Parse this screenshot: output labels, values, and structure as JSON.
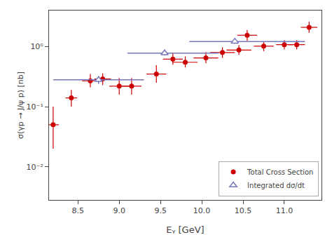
{
  "chart_data": {
    "type": "scatter",
    "title": "",
    "xlabel": "Eᵧ [GeV]",
    "ylabel": "σ(γp → J/ψ p) [nb]",
    "log": "y",
    "grid": false,
    "legend": "lower right",
    "xlim": [
      8.15,
      11.45
    ],
    "xticks": [
      8.5,
      {
        "value": 9,
        "label": "9.0"
      },
      9.5,
      {
        "value": 10,
        "label": "10.0"
      },
      10.5,
      {
        "value": 11,
        "label": "11.0"
      }
    ],
    "ylim": [
      0.0028,
      4.0
    ],
    "yticks": [
      {
        "value": 0.01,
        "label": "10⁻²"
      },
      {
        "value": 0.1,
        "label": "10⁻¹"
      },
      {
        "value": 1,
        "label": "10⁰"
      }
    ],
    "series": [
      {
        "name": "Total Cross Section",
        "color": "#cc0000",
        "marker": "circle",
        "x": [
          8.2,
          8.42,
          8.65,
          8.8,
          9.0,
          9.15,
          9.45,
          9.65,
          9.8,
          10.05,
          10.25,
          10.45,
          10.55,
          10.75,
          11.0,
          11.15,
          11.3
        ],
        "values": [
          0.05,
          0.14,
          0.27,
          0.29,
          0.22,
          0.22,
          0.35,
          0.62,
          0.55,
          0.65,
          0.8,
          0.88,
          1.55,
          1.02,
          1.08,
          1.08,
          2.1
        ],
        "xerr": [
          0.07,
          0.07,
          0.1,
          0.1,
          0.12,
          0.12,
          0.12,
          0.12,
          0.15,
          0.15,
          0.15,
          0.15,
          0.12,
          0.12,
          0.1,
          0.1,
          0.1
        ],
        "yerr_lo": [
          0.03,
          0.04,
          0.06,
          0.06,
          0.06,
          0.06,
          0.1,
          0.12,
          0.1,
          0.12,
          0.15,
          0.15,
          0.3,
          0.18,
          0.18,
          0.18,
          0.4
        ],
        "yerr_hi": [
          0.05,
          0.05,
          0.08,
          0.07,
          0.08,
          0.08,
          0.14,
          0.16,
          0.14,
          0.16,
          0.18,
          0.18,
          0.35,
          0.2,
          0.2,
          0.2,
          0.5
        ]
      },
      {
        "name": "Integrated dσ/dt",
        "color": "#7777bb",
        "marker": "triangle-up",
        "x": [
          8.75,
          9.55,
          10.4
        ],
        "x_lo": [
          8.2,
          9.1,
          9.85
        ],
        "x_hi": [
          9.3,
          10.2,
          11.25
        ],
        "values": [
          0.28,
          0.78,
          1.22
        ],
        "yerr": [
          0.04,
          0.07,
          0.1
        ]
      }
    ]
  }
}
